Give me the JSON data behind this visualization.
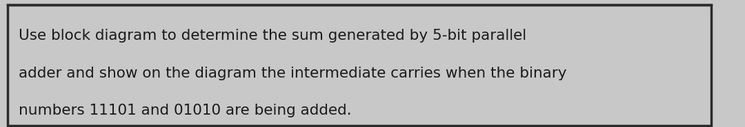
{
  "text_lines": [
    "Use block diagram to determine the sum generated by 5-bit parallel",
    "adder and show on the diagram the intermediate carries when the binary",
    "numbers 11101 and 01010 are being added."
  ],
  "background_color": "#c8c8c8",
  "border_color": "#2a2a2a",
  "text_color": "#1a1a1a",
  "font_size": 15.5,
  "fig_width": 10.8,
  "fig_height": 1.85
}
